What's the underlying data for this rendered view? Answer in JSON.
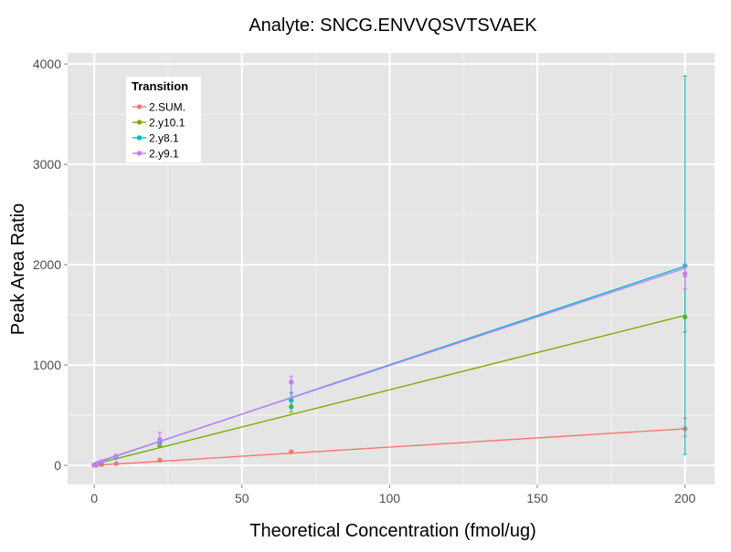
{
  "chart_data": {
    "type": "line",
    "title": "Analyte: SNCG.ENVVQSVTSVAEK",
    "xlabel": "Theoretical Concentration (fmol/ug)",
    "ylabel": "Peak Area Ratio",
    "xlim": [
      -9,
      210
    ],
    "ylim": [
      -190,
      4110
    ],
    "xticks": [
      0,
      50,
      100,
      150,
      200
    ],
    "xtick_labels": [
      "0",
      "50",
      "100",
      "150",
      "200"
    ],
    "yticks": [
      0,
      1000,
      2000,
      3000,
      4000
    ],
    "ytick_labels": [
      "0",
      "1000",
      "2000",
      "3000",
      "4000"
    ],
    "grid": true,
    "legend": {
      "title": "Transition",
      "placement": "top-left"
    },
    "series": [
      {
        "name": "2.SUM.",
        "color": "#F8766D",
        "points": [
          {
            "x": 0,
            "y": 2
          },
          {
            "x": 0.8,
            "y": 4
          },
          {
            "x": 2.5,
            "y": 9
          },
          {
            "x": 7.4,
            "y": 18
          },
          {
            "x": 22.2,
            "y": 52
          },
          {
            "x": 66.7,
            "y": 135
          },
          {
            "x": 200,
            "y": 365,
            "err_low": 290,
            "err_high": 470
          }
        ],
        "fit": [
          [
            0,
            0
          ],
          [
            200,
            365
          ]
        ]
      },
      {
        "name": "2.y10.1",
        "color": "#7CAE00",
        "points": [
          {
            "x": 0,
            "y": 4
          },
          {
            "x": 0.8,
            "y": 10
          },
          {
            "x": 2.5,
            "y": 28
          },
          {
            "x": 7.4,
            "y": 80
          },
          {
            "x": 22.2,
            "y": 200
          },
          {
            "x": 66.7,
            "y": 585,
            "err_low": 530,
            "err_high": 640
          },
          {
            "x": 200,
            "y": 1480,
            "err_low": 1330,
            "err_high": 1880
          }
        ],
        "fit": [
          [
            0,
            12
          ],
          [
            200,
            1495
          ]
        ]
      },
      {
        "name": "2.y8.1",
        "color": "#00BFC4",
        "points": [
          {
            "x": 0,
            "y": 4
          },
          {
            "x": 0.8,
            "y": 12
          },
          {
            "x": 2.5,
            "y": 35
          },
          {
            "x": 7.4,
            "y": 85
          },
          {
            "x": 22.2,
            "y": 235
          },
          {
            "x": 66.7,
            "y": 650,
            "err_low": 570,
            "err_high": 720
          },
          {
            "x": 200,
            "y": 1990,
            "err_low": 110,
            "err_high": 3880
          }
        ],
        "fit": [
          [
            0,
            20
          ],
          [
            200,
            1985
          ]
        ]
      },
      {
        "name": "2.y9.1",
        "color": "#C77CFF",
        "points": [
          {
            "x": 0,
            "y": 5
          },
          {
            "x": 0.8,
            "y": 14
          },
          {
            "x": 2.5,
            "y": 38
          },
          {
            "x": 7.4,
            "y": 92
          },
          {
            "x": 22.2,
            "y": 260,
            "err_low": 200,
            "err_high": 330
          },
          {
            "x": 66.7,
            "y": 830,
            "err_low": 730,
            "err_high": 890
          },
          {
            "x": 200,
            "y": 1910,
            "err_low": 1760,
            "err_high": 2000
          }
        ],
        "fit": [
          [
            0,
            25
          ],
          [
            200,
            1965
          ]
        ]
      }
    ]
  }
}
